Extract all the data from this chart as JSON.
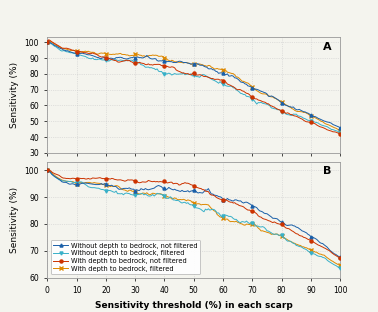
{
  "title_a": "A",
  "title_b": "B",
  "xlabel": "Sensitivity threshold (%) in each scarp",
  "ylabel": "Sensitivity (%)",
  "xlim": [
    0,
    100
  ],
  "ylim_a": [
    30,
    103
  ],
  "ylim_b": [
    60,
    103
  ],
  "yticks_a": [
    30,
    40,
    50,
    60,
    70,
    80,
    90,
    100
  ],
  "yticks_b": [
    60,
    70,
    80,
    90,
    100
  ],
  "xticks": [
    0,
    10,
    20,
    30,
    40,
    50,
    60,
    70,
    80,
    90,
    100
  ],
  "colors": {
    "blue": "#1a5fa8",
    "cyan": "#38b0c8",
    "red": "#cc3300",
    "orange": "#dd8800"
  },
  "legend_labels": [
    "Without depth to bedrock, not filtered",
    "Without depth to bedrock, filtered",
    "With depth to bedrock, not filtered",
    "With depth to bedrock, filtered"
  ],
  "background_color": "#f4f4ee",
  "grid_color": "#cccccc"
}
